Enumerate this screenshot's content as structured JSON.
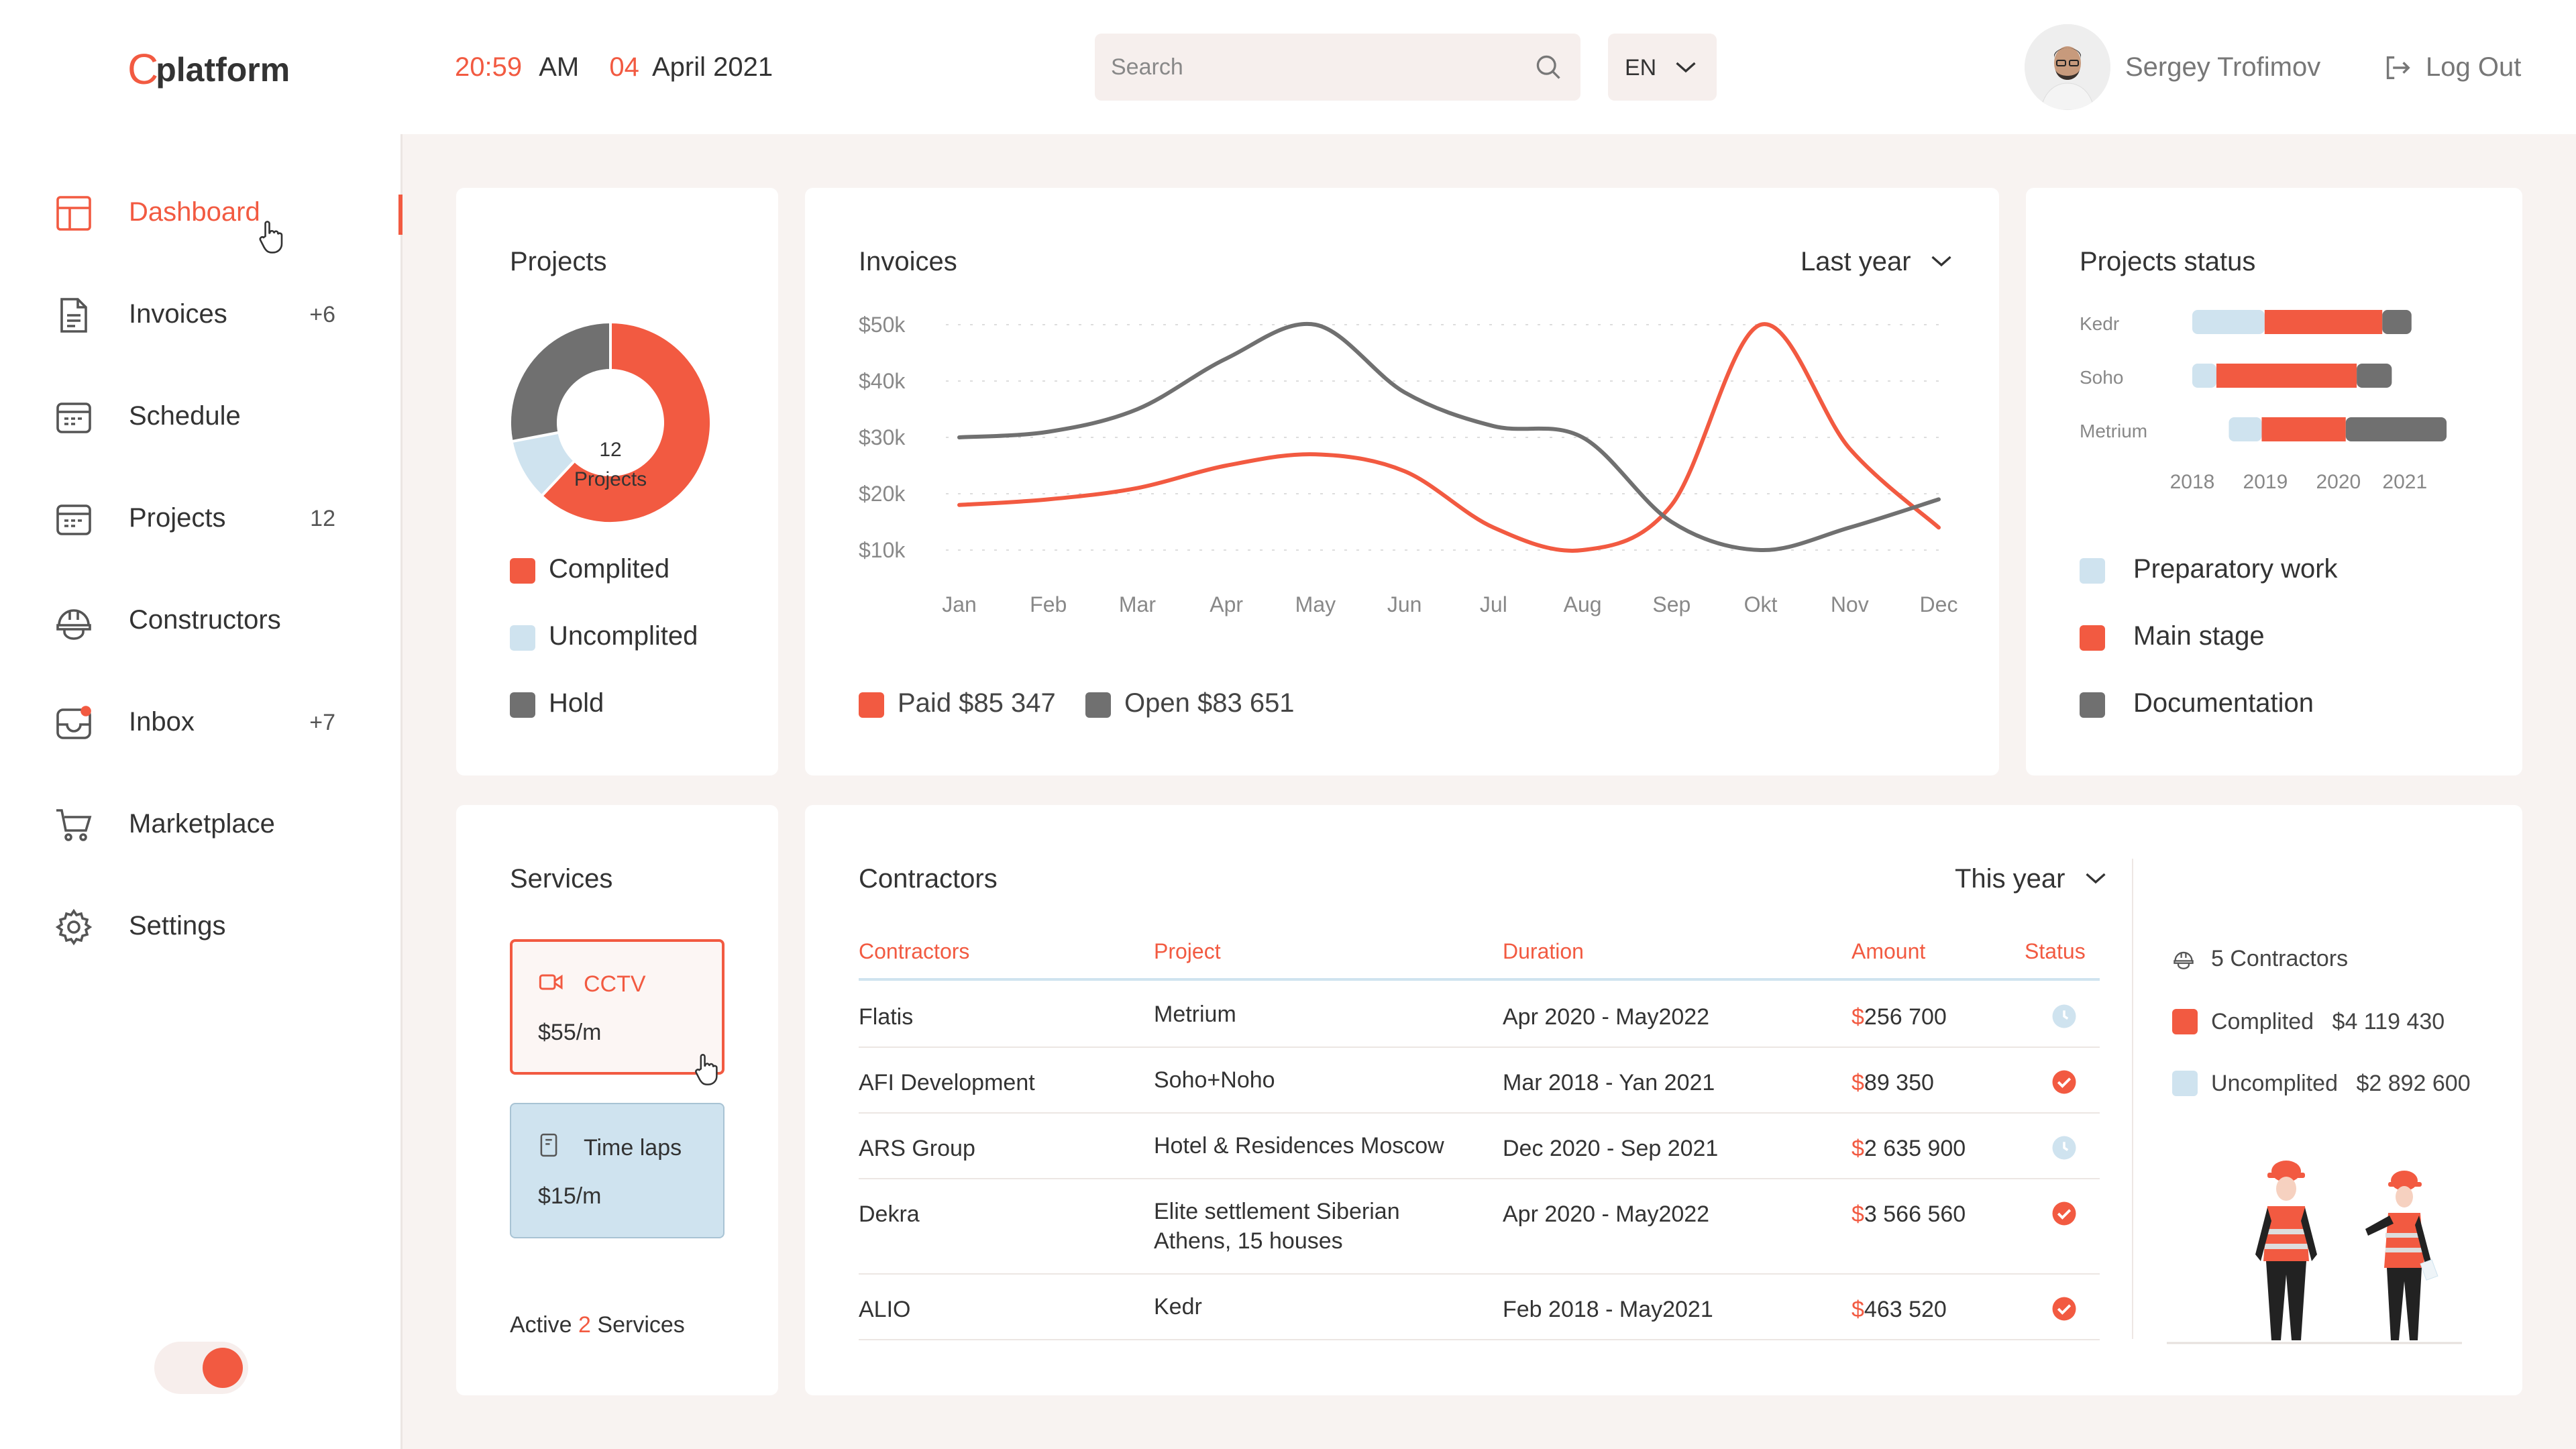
{
  "header": {
    "logo": "platform",
    "time_hm": "20:59",
    "time_ampm": "AM",
    "date_day": "04",
    "date_rest": "April 2021",
    "search_placeholder": "Search",
    "language": "EN",
    "user_name": "Sergey Trofimov",
    "logout_label": "Log Out"
  },
  "sidebar": {
    "items": [
      {
        "label": "Dashboard",
        "count": "",
        "icon": "dashboard-icon",
        "active": true
      },
      {
        "label": "Invoices",
        "count": "+6",
        "icon": "invoice-icon"
      },
      {
        "label": "Schedule",
        "count": "",
        "icon": "calendar-icon"
      },
      {
        "label": "Projects",
        "count": "12",
        "icon": "projects-icon"
      },
      {
        "label": "Constructors",
        "count": "",
        "icon": "helmet-icon"
      },
      {
        "label": "Inbox",
        "count": "+7",
        "icon": "inbox-icon"
      },
      {
        "label": "Marketplace",
        "count": "",
        "icon": "cart-icon"
      },
      {
        "label": "Settings",
        "count": "",
        "icon": "gear-icon"
      }
    ],
    "toggle_on": true
  },
  "projects": {
    "title": "Projects",
    "center_count": "12",
    "center_label": "Projects",
    "legend": [
      "Complited",
      "Uncomplited",
      "Hold"
    ],
    "chart_data": {
      "type": "pie",
      "labels": [
        "Complited",
        "Uncomplited",
        "Hold"
      ],
      "values": [
        62,
        10,
        28
      ]
    }
  },
  "invoices": {
    "title": "Invoices",
    "period": "Last year",
    "legend_paid": "Paid $85 347",
    "legend_open": "Open $83 651",
    "chart_data": {
      "type": "line",
      "y_ticks": [
        "$50k",
        "$40k",
        "$30k",
        "$20k",
        "$10k"
      ],
      "ylim": [
        10,
        50
      ],
      "categories": [
        "Jan",
        "Feb",
        "Mar",
        "Apr",
        "May",
        "Jun",
        "Jul",
        "Aug",
        "Sep",
        "Okt",
        "Nov",
        "Dec"
      ],
      "series": [
        {
          "name": "Paid",
          "values": [
            18,
            19,
            21,
            25,
            27,
            24,
            14,
            10,
            18,
            50,
            28,
            14
          ]
        },
        {
          "name": "Open",
          "values": [
            30,
            31,
            35,
            44,
            50,
            38,
            32,
            30,
            15,
            10,
            14,
            19
          ]
        }
      ]
    }
  },
  "projects_status": {
    "title": "Projects status",
    "years": [
      "2018",
      "2019",
      "2020",
      "2021"
    ],
    "rows": [
      {
        "label": "Kedr",
        "prep": [
          2018.0,
          2018.99
        ],
        "main": [
          2018.99,
          2020.6
        ],
        "doc": [
          2020.6,
          2021.0
        ]
      },
      {
        "label": "Soho",
        "prep": [
          2018.0,
          2018.33
        ],
        "main": [
          2018.33,
          2020.25
        ],
        "doc": [
          2020.25,
          2020.73
        ]
      },
      {
        "label": "Metrium",
        "prep": [
          2018.5,
          2018.95
        ],
        "main": [
          2018.95,
          2020.1
        ],
        "doc": [
          2020.1,
          2021.48
        ]
      }
    ],
    "legend": [
      "Preparatory work",
      "Main stage",
      "Documentation"
    ]
  },
  "services": {
    "title": "Services",
    "items": [
      {
        "name": "CCTV",
        "price": "$55/m",
        "icon": "video-camera-icon"
      },
      {
        "name": "Time laps",
        "price": "$15/m",
        "icon": "timer-icon"
      }
    ],
    "active_prefix": "Active",
    "active_count": "2",
    "active_suffix": "Services"
  },
  "contractors": {
    "title": "Contractors",
    "period": "This year",
    "columns": [
      "Contractors",
      "Project",
      "Duration",
      "Amount",
      "Status"
    ],
    "rows": [
      {
        "name": "Flatis",
        "project": "Metrium",
        "project2": "",
        "duration": "Apr 2020 - May2022",
        "amount": "256 700",
        "status": "pending"
      },
      {
        "name": "AFI Development",
        "project": "Soho+Noho",
        "project2": "",
        "duration": "Mar 2018 - Yan 2021",
        "amount": "89 350",
        "status": "done"
      },
      {
        "name": "ARS Group",
        "project": "Hotel & Residences Moscow",
        "project2": "",
        "duration": "Dec 2020 - Sep 2021",
        "amount": "2 635 900",
        "status": "pending"
      },
      {
        "name": "Dekra",
        "project": "Elite settlement Siberian",
        "project2": "Athens, 15 houses",
        "duration": "Apr 2020 - May2022",
        "amount": "3 566 560",
        "status": "done"
      },
      {
        "name": "ALIO",
        "project": "Kedr",
        "project2": "",
        "duration": "Feb 2018 - May2021",
        "amount": "463 520",
        "status": "done"
      }
    ],
    "summary_count": "5 Contractors",
    "summary_complited_label": "Complited",
    "summary_complited_value": "$4 119 430",
    "summary_uncomplited_label": "Uncomplited",
    "summary_uncomplited_value": "$2 892 600"
  },
  "colors": {
    "accent": "#f25a41",
    "light_blue": "#cfe3ef",
    "gray": "#707070",
    "background": "#f8f3f1"
  }
}
